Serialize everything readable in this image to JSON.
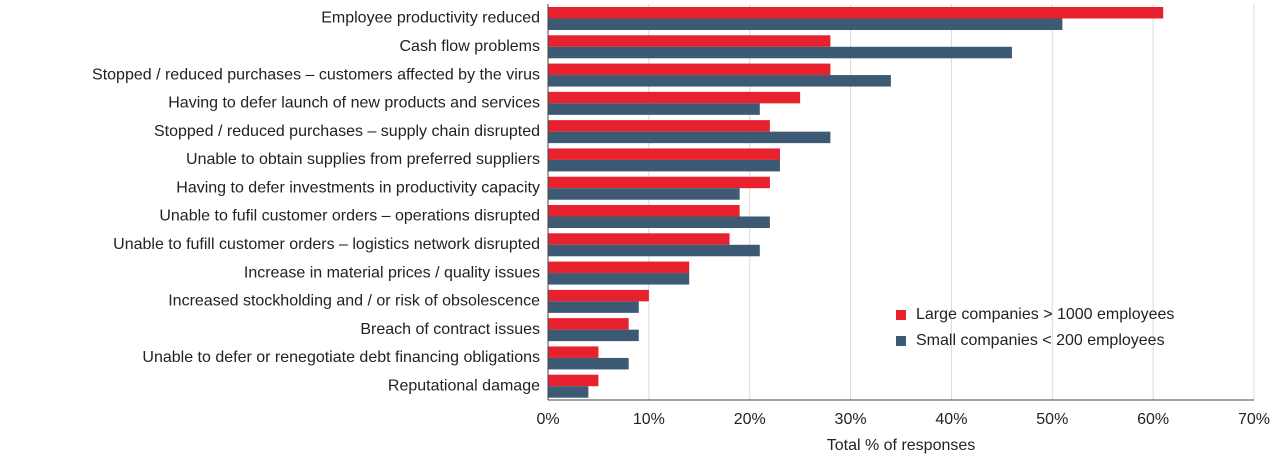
{
  "chart_data": {
    "type": "barh",
    "xlabel": "Total % of responses",
    "categories": [
      "Employee productivity reduced",
      "Cash flow problems",
      "Stopped / reduced purchases – customers affected by the virus",
      "Having to defer launch of new products and services",
      "Stopped / reduced purchases – supply chain disrupted",
      "Unable to obtain supplies from preferred suppliers",
      "Having to defer investments in productivity capacity",
      "Unable to fufil customer orders – operations disrupted",
      "Unable to fufill customer orders – logistics network disrupted",
      "Increase in material prices / quality issues",
      "Increased stockholding and / or risk of obsolescence",
      "Breach of contract issues",
      "Unable to defer or renegotiate debt financing obligations",
      "Reputational damage"
    ],
    "series": [
      {
        "name": "Large companies > 1000 employees",
        "color": "#e8212e",
        "values": [
          61,
          28,
          28,
          25,
          22,
          23,
          22,
          19,
          18,
          14,
          10,
          8,
          5,
          5
        ]
      },
      {
        "name": "Small companies < 200 employees",
        "color": "#3d5a74",
        "values": [
          51,
          46,
          34,
          21,
          28,
          23,
          19,
          22,
          21,
          14,
          9,
          9,
          8,
          4
        ]
      }
    ],
    "xlim": [
      0,
      70
    ],
    "xticks": [
      {
        "value": 0,
        "label": "0%"
      },
      {
        "value": 10,
        "label": "10%"
      },
      {
        "value": 20,
        "label": "20%"
      },
      {
        "value": 30,
        "label": "30%"
      },
      {
        "value": 40,
        "label": "40%"
      },
      {
        "value": 50,
        "label": "50%"
      },
      {
        "value": 60,
        "label": "60%"
      },
      {
        "value": 70,
        "label": "70%"
      }
    ],
    "grid": true,
    "legend": "lower right"
  }
}
